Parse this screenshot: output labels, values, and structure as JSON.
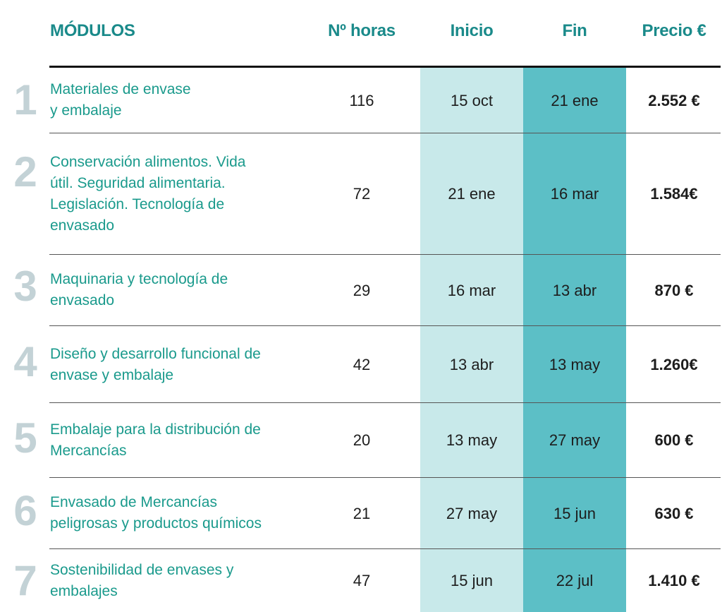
{
  "header": {
    "modules": "MÓDULOS",
    "hours": "Nº horas",
    "start": "Inicio",
    "end": "Fin",
    "price": "Precio €"
  },
  "rows": [
    {
      "num": "1",
      "module": "Materiales de envase\ny embalaje",
      "hours": "116",
      "start": "15 oct",
      "end": "21 ene",
      "price": "2.552 €"
    },
    {
      "num": "2",
      "module": "Conservación alimentos. Vida\nútil. Seguridad alimentaria.\nLegislación. Tecnología de\nenvasado",
      "hours": "72",
      "start": "21 ene",
      "end": "16 mar",
      "price": "1.584€"
    },
    {
      "num": "3",
      "module": "Maquinaria y tecnología de\nenvasado",
      "hours": "29",
      "start": "16 mar",
      "end": "13 abr",
      "price": "870 €"
    },
    {
      "num": "4",
      "module": "Diseño y desarrollo funcional de\nenvase y embalaje",
      "hours": "42",
      "start": "13 abr",
      "end": "13 may",
      "price": "1.260€"
    },
    {
      "num": "5",
      "module": "Embalaje para la distribución de\nMercancías",
      "hours": "20",
      "start": "13 may",
      "end": "27 may",
      "price": "600 €"
    },
    {
      "num": "6",
      "module": "Envasado de Mercancías\npeligrosas y productos químicos",
      "hours": "21",
      "start": "27 may",
      "end": "15 jun",
      "price": "630 €"
    },
    {
      "num": "7",
      "module": "Sostenibilidad de envases y\nembalajes",
      "hours": "47",
      "start": "15 jun",
      "end": "22 jul",
      "price": "1.410 €"
    }
  ]
}
